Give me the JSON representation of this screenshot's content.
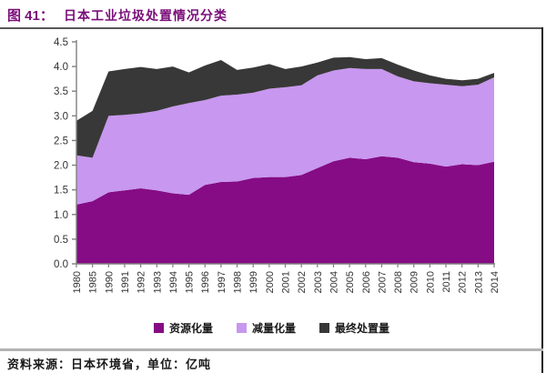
{
  "header": {
    "figure_label": "图 41：",
    "title": "日本工业垃圾处置情况分类"
  },
  "footer": {
    "source": "资料来源：日本环境省，单位：亿吨"
  },
  "colors": {
    "title_purple": "#7A0E7A",
    "axis_gray": "#808080",
    "tick_label": "#333333",
    "top_rule": "#595959",
    "bottom_rule": "#b3b3b3",
    "right_border": "#1a1a1a"
  },
  "chart_data": {
    "type": "area",
    "stacked": true,
    "grid": false,
    "legend_position": "bottom",
    "unit": "亿吨",
    "ylim": [
      0,
      4.5
    ],
    "ytick_step": 0.5,
    "x": [
      "1980",
      "1985",
      "1990",
      "1991",
      "1992",
      "1993",
      "1994",
      "1995",
      "1996",
      "1997",
      "1998",
      "1999",
      "2000",
      "2001",
      "2002",
      "2003",
      "2004",
      "2005",
      "2006",
      "2007",
      "2008",
      "2009",
      "2010",
      "2011",
      "2012",
      "2013",
      "2014"
    ],
    "series": [
      {
        "name": "资源化量",
        "color": "#850C85",
        "values": [
          1.2,
          1.27,
          1.45,
          1.49,
          1.53,
          1.49,
          1.43,
          1.4,
          1.6,
          1.66,
          1.67,
          1.74,
          1.76,
          1.76,
          1.8,
          1.94,
          2.08,
          2.15,
          2.12,
          2.18,
          2.15,
          2.06,
          2.03,
          1.97,
          2.02,
          2.0,
          2.07
        ]
      },
      {
        "name": "减量化量",
        "color": "#C897EF",
        "values": [
          1.0,
          0.88,
          1.55,
          1.53,
          1.52,
          1.61,
          1.76,
          1.86,
          1.72,
          1.75,
          1.76,
          1.73,
          1.79,
          1.82,
          1.82,
          1.88,
          1.84,
          1.82,
          1.83,
          1.77,
          1.65,
          1.64,
          1.63,
          1.66,
          1.58,
          1.63,
          1.71
        ]
      },
      {
        "name": "最终处置量",
        "color": "#383838",
        "values": [
          0.7,
          0.95,
          0.9,
          0.93,
          0.94,
          0.85,
          0.81,
          0.62,
          0.7,
          0.72,
          0.5,
          0.51,
          0.5,
          0.37,
          0.38,
          0.26,
          0.26,
          0.22,
          0.2,
          0.22,
          0.24,
          0.22,
          0.16,
          0.12,
          0.12,
          0.12,
          0.09
        ]
      }
    ]
  }
}
